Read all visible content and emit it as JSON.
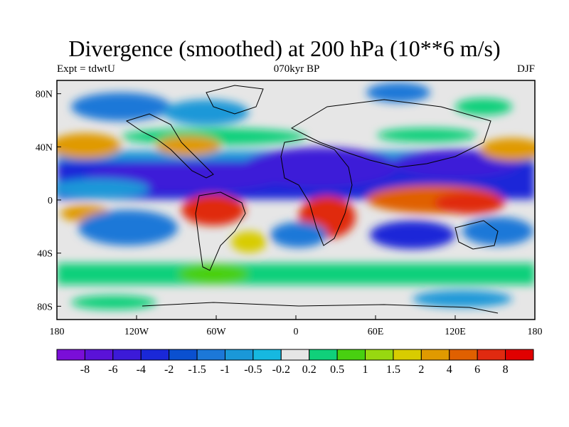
{
  "title": "Divergence (smoothed) at 200 hPa (10**6 m/s)",
  "experiment_label": "Expt = tdwtU",
  "period_label": "070kyr BP",
  "season_label": "DJF",
  "map": {
    "x_ticks": [
      "180",
      "120W",
      "60W",
      "0",
      "60E",
      "120E",
      "180"
    ],
    "y_ticks": [
      "80N",
      "40N",
      "0",
      "40S",
      "80S"
    ],
    "x_tick_values": [
      -180,
      -120,
      -60,
      0,
      60,
      120,
      180
    ],
    "y_tick_values": [
      80,
      40,
      0,
      -40,
      -80
    ],
    "lon_range": [
      -180,
      180
    ],
    "lat_range": [
      -90,
      90
    ]
  },
  "colorbar": {
    "labels": [
      "-8",
      "-6",
      "-4",
      "-2",
      "-1.5",
      "-1",
      "-0.5",
      "-0.2",
      "0.2",
      "0.5",
      "1",
      "1.5",
      "2",
      "4",
      "6",
      "8"
    ],
    "colors": [
      "#7a0ed8",
      "#5a12d8",
      "#3c1ad8",
      "#1a28d8",
      "#0a50d0",
      "#1c78d8",
      "#1a98d8",
      "#16b8e0",
      "#e6e6e6",
      "#10d07a",
      "#48d010",
      "#98d810",
      "#d8cc00",
      "#e09a00",
      "#e06000",
      "#e02a10",
      "#e00000"
    ]
  }
}
